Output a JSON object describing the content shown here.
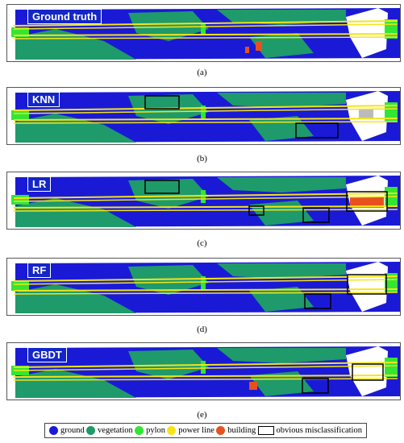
{
  "panels": [
    {
      "label": "Ground truth",
      "caption": "(a)"
    },
    {
      "label": "KNN",
      "caption": "(b)"
    },
    {
      "label": "LR",
      "caption": "(c)"
    },
    {
      "label": "RF",
      "caption": "(d)"
    },
    {
      "label": "GBDT",
      "caption": "(e)"
    }
  ],
  "legend": [
    {
      "label": "ground",
      "color": "#1a1ad6"
    },
    {
      "label": "vegetation",
      "color": "#1f9a6a"
    },
    {
      "label": "pylon",
      "color": "#33e633"
    },
    {
      "label": "power line",
      "color": "#f5e41a"
    },
    {
      "label": "building",
      "color": "#e8501e"
    },
    {
      "label": "obvious misclassification",
      "color": "#000000"
    }
  ],
  "colors": {
    "ground": "#1a1ad6",
    "vegetation": "#1f9a6a",
    "pylon": "#33e633",
    "power_line": "#f5e41a",
    "building": "#e8501e"
  }
}
